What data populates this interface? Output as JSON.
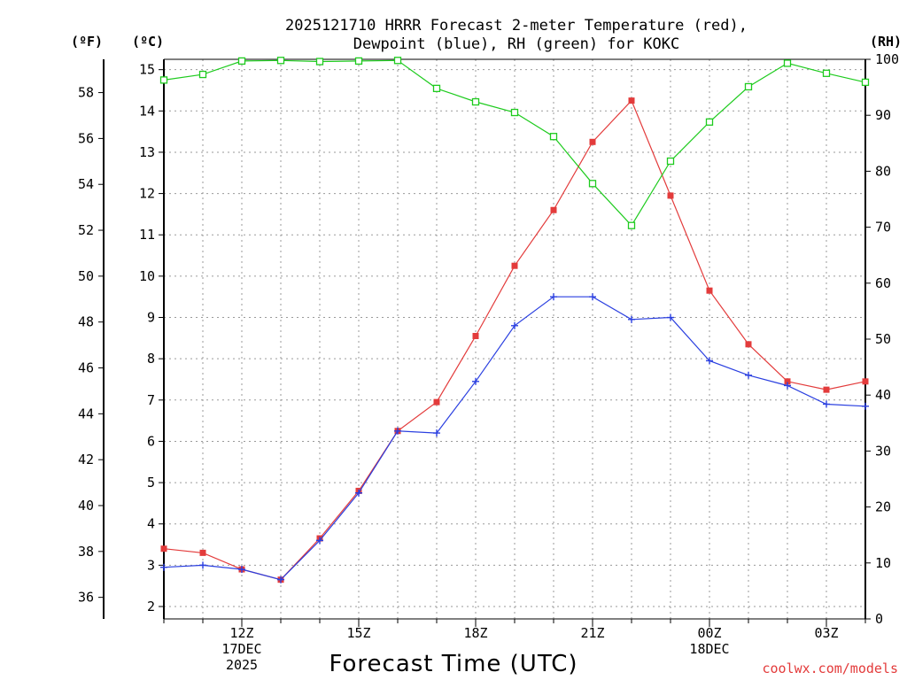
{
  "title_line1": "2025121710 HRRR Forecast 2-meter Temperature (red),",
  "title_line2": "Dewpoint (blue), RH (green) for KOKC",
  "units": {
    "fahrenheit": "(ºF)",
    "celsius": "(ºC)",
    "rh": "(RH)"
  },
  "xlabel": "Forecast Time (UTC)",
  "credit": "coolwx.com/models",
  "colors": {
    "temperature": "#e33b3b",
    "dewpoint": "#2a3fe0",
    "rh": "#1ecb1e",
    "axis": "#000000",
    "grid": "#9a9a9a"
  },
  "chart_data": {
    "type": "line",
    "x": [
      10,
      11,
      12,
      13,
      14,
      15,
      16,
      17,
      18,
      19,
      20,
      21,
      22,
      23,
      24,
      25,
      26,
      27,
      28
    ],
    "xlim": [
      10,
      28
    ],
    "x_ticks": [
      {
        "x": 12,
        "lines": [
          "12Z",
          "17DEC",
          "2025"
        ]
      },
      {
        "x": 15,
        "lines": [
          "15Z"
        ]
      },
      {
        "x": 18,
        "lines": [
          "18Z"
        ]
      },
      {
        "x": 21,
        "lines": [
          "21Z"
        ]
      },
      {
        "x": 24,
        "lines": [
          "00Z",
          "18DEC"
        ]
      },
      {
        "x": 27,
        "lines": [
          "03Z"
        ]
      }
    ],
    "ylim_celsius": [
      1.7,
      15.25
    ],
    "y_ticks_celsius": [
      "2",
      "3",
      "4",
      "5",
      "6",
      "7",
      "8",
      "9",
      "10",
      "11",
      "12",
      "13",
      "14",
      "15"
    ],
    "y_ticks_fahrenheit": [
      "36",
      "38",
      "40",
      "42",
      "44",
      "46",
      "48",
      "50",
      "52",
      "54",
      "56",
      "58"
    ],
    "ylim_rh": [
      0,
      100
    ],
    "y_ticks_rh": [
      "0",
      "10",
      "20",
      "30",
      "40",
      "50",
      "60",
      "70",
      "80",
      "90",
      "100"
    ],
    "series": [
      {
        "name": "Temperature",
        "unit": "°C",
        "color": "#e33b3b",
        "marker": "square-filled",
        "values": [
          3.4,
          3.3,
          2.9,
          2.65,
          3.65,
          4.8,
          6.25,
          6.95,
          8.55,
          10.25,
          11.6,
          13.25,
          14.25,
          11.95,
          9.65,
          8.35,
          7.45,
          7.25,
          7.45
        ]
      },
      {
        "name": "Dewpoint",
        "unit": "°C",
        "color": "#2a3fe0",
        "marker": "plus",
        "values": [
          2.95,
          3.0,
          2.9,
          2.65,
          3.6,
          4.75,
          6.25,
          6.2,
          7.45,
          8.8,
          9.5,
          9.5,
          8.95,
          9.0,
          7.95,
          7.6,
          7.35,
          6.9,
          6.85
        ]
      },
      {
        "name": "RH",
        "unit": "%",
        "color": "#1ecb1e",
        "marker": "square-open",
        "values": [
          96.3,
          97.3,
          99.7,
          99.8,
          99.6,
          99.7,
          99.8,
          94.8,
          92.4,
          90.5,
          86.2,
          77.8,
          70.3,
          81.8,
          88.8,
          95.1,
          99.3,
          97.5,
          95.9
        ]
      }
    ]
  }
}
